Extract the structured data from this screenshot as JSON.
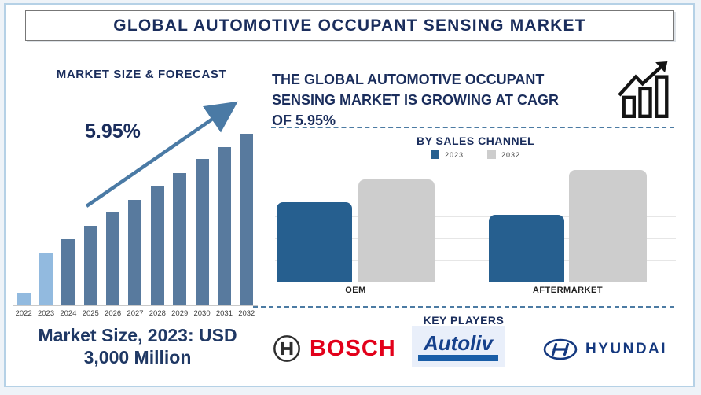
{
  "page_title": "GLOBAL AUTOMOTIVE OCCUPANT SENSING MARKET",
  "left_panel": {
    "chart_title": "MARKET SIZE & FORECAST",
    "cagr_label": "5.95%",
    "market_size_caption_line1": "Market Size, 2023: USD",
    "market_size_caption_line2": "3,000 Million"
  },
  "right_panel": {
    "headline_lines": [
      "THE GLOBAL AUTOMOTIVE OCCUPANT",
      "SENSING MARKET IS GROWING AT CAGR",
      "OF 5.95%"
    ],
    "sales_chart_title": "BY SALES CHANNEL",
    "legend": [
      {
        "label": "2023",
        "color": "#265f8f"
      },
      {
        "label": "2032",
        "color": "#cdcdcd"
      }
    ],
    "category_labels": [
      "OEM",
      "AFTERMARKET"
    ],
    "key_players_title": "KEY PLAYERS",
    "key_players": [
      {
        "name": "BOSCH"
      },
      {
        "name": "Autoliv"
      },
      {
        "name": "HYUNDAI"
      }
    ]
  },
  "colors": {
    "navy_text": "#1a2d5c",
    "frame_border": "#b5d1e6",
    "forecast_bar_light": "#92badf",
    "forecast_bar_steel": "#587a9e",
    "trend_arrow": "#4a7aa5",
    "dashed_divider": "#4c7ba3",
    "sales_blue": "#265f8f",
    "sales_gray": "#cdcdcd",
    "bosch_red": "#e2001a",
    "autoliv_blue": "#16418c",
    "hyundai_blue": "#15397f"
  },
  "chart_data": [
    {
      "type": "bar",
      "title": "MARKET SIZE & FORECAST",
      "annotation": "5.95% (CAGR trend arrow)",
      "categories": [
        "2022",
        "2023",
        "2024",
        "2025",
        "2026",
        "2027",
        "2028",
        "2029",
        "2030",
        "2031",
        "2032"
      ],
      "values": [
        16,
        67,
        84,
        101,
        118,
        134,
        151,
        168,
        186,
        201,
        218
      ],
      "value_scale": "relative bar heights in px; only labeled value on page: 2023 = USD 3,000 Million",
      "bar_colors": [
        "#92badf",
        "#92badf",
        "#587a9e",
        "#587a9e",
        "#587a9e",
        "#587a9e",
        "#587a9e",
        "#587a9e",
        "#587a9e",
        "#587a9e",
        "#587a9e"
      ],
      "xlabel": "",
      "ylabel": "",
      "grid": false,
      "legend_position": "none"
    },
    {
      "type": "bar",
      "title": "BY SALES CHANNEL",
      "categories": [
        "OEM",
        "AFTERMARKET"
      ],
      "series": [
        {
          "name": "2023",
          "color": "#265f8f",
          "values": [
            102,
            86
          ]
        },
        {
          "name": "2032",
          "color": "#cdcdcd",
          "values": [
            131,
            143
          ]
        }
      ],
      "value_scale": "relative bar heights in px; axis unlabeled",
      "xlabel": "",
      "ylabel": "",
      "grid": true,
      "legend_position": "top"
    }
  ]
}
